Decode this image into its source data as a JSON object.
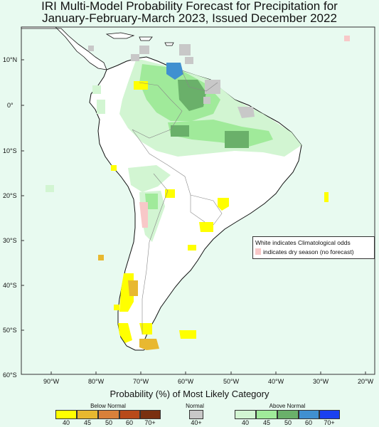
{
  "title_line1": "IRI Multi-Model Probability Forecast for Precipitation for",
  "title_line2": "January-February-March 2023, Issued December 2022",
  "lat_labels": [
    "10°N",
    "0°",
    "10°S",
    "20°S",
    "30°S",
    "40°S",
    "50°S",
    "60°S"
  ],
  "lon_labels": [
    "90°W",
    "80°W",
    "70°W",
    "60°W",
    "50°W",
    "40°W",
    "30°W",
    "20°W"
  ],
  "legend": {
    "title": "Probability (%) of Most Likely Category",
    "below": {
      "label": "Below Normal",
      "colors": [
        "#ffff00",
        "#e8b830",
        "#d8803a",
        "#b84a1a",
        "#7a3010"
      ],
      "ticks": [
        "40",
        "45",
        "50",
        "60",
        "70+"
      ]
    },
    "normal": {
      "label": "Normal",
      "color": "#c8c8c8",
      "tick": "40+"
    },
    "above": {
      "label": "Above Normal",
      "colors": [
        "#d2f5d2",
        "#a0ea9a",
        "#6ab06a",
        "#4090d0",
        "#1a40f0"
      ],
      "ticks": [
        "40",
        "45",
        "50",
        "60",
        "70+"
      ]
    },
    "note1": "White indicates Climatological odds",
    "note2": "indicates dry season (no forecast)",
    "dry_color": "#f8c8c8"
  },
  "colors": {
    "background": "#e8faf0",
    "land": "#ffffff",
    "coast": "#111111",
    "border": "#888888"
  }
}
